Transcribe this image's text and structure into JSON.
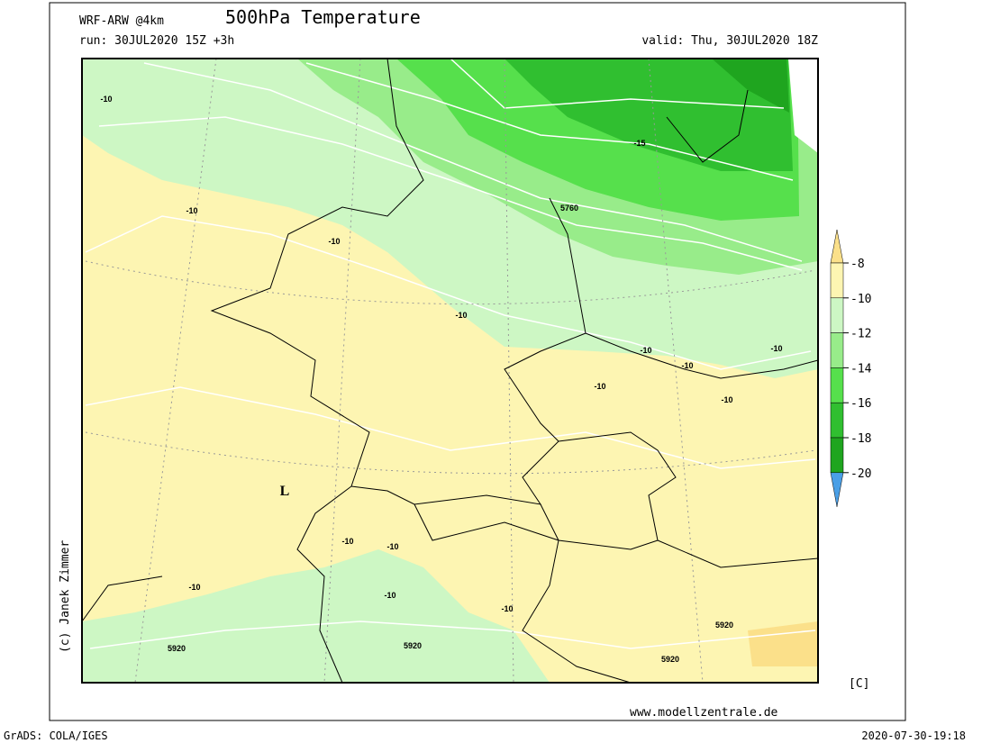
{
  "header": {
    "model": "WRF-ARW @4km",
    "title": "500hPa Temperature",
    "run": "run: 30JUL2020 15Z +3h",
    "valid": "valid: Thu, 30JUL2020 18Z"
  },
  "colorbar": {
    "labels": [
      "-8",
      "-10",
      "-12",
      "-14",
      "-16",
      "-18",
      "-20"
    ],
    "colors": [
      "#fbe08a",
      "#fdf5b2",
      "#cdf7c4",
      "#98ec8a",
      "#56e04c",
      "#30bf30",
      "#1fa51f",
      "#4a9fe6"
    ],
    "unit": "[C]"
  },
  "map": {
    "contour_labels": [
      "-10",
      "-10",
      "-10",
      "-10",
      "-10",
      "-10",
      "-10",
      "-10",
      "-10",
      "-10",
      "-10",
      "-10",
      "-10",
      "-10",
      "-15",
      "5760",
      "5920",
      "5920",
      "5920",
      "5920",
      "L"
    ]
  },
  "footer": {
    "credit": "(c) Janek Zimmer",
    "website": "www.modellzentrale.de",
    "software": "GrADS: COLA/IGES",
    "timestamp": "2020-07-30-19:18"
  }
}
